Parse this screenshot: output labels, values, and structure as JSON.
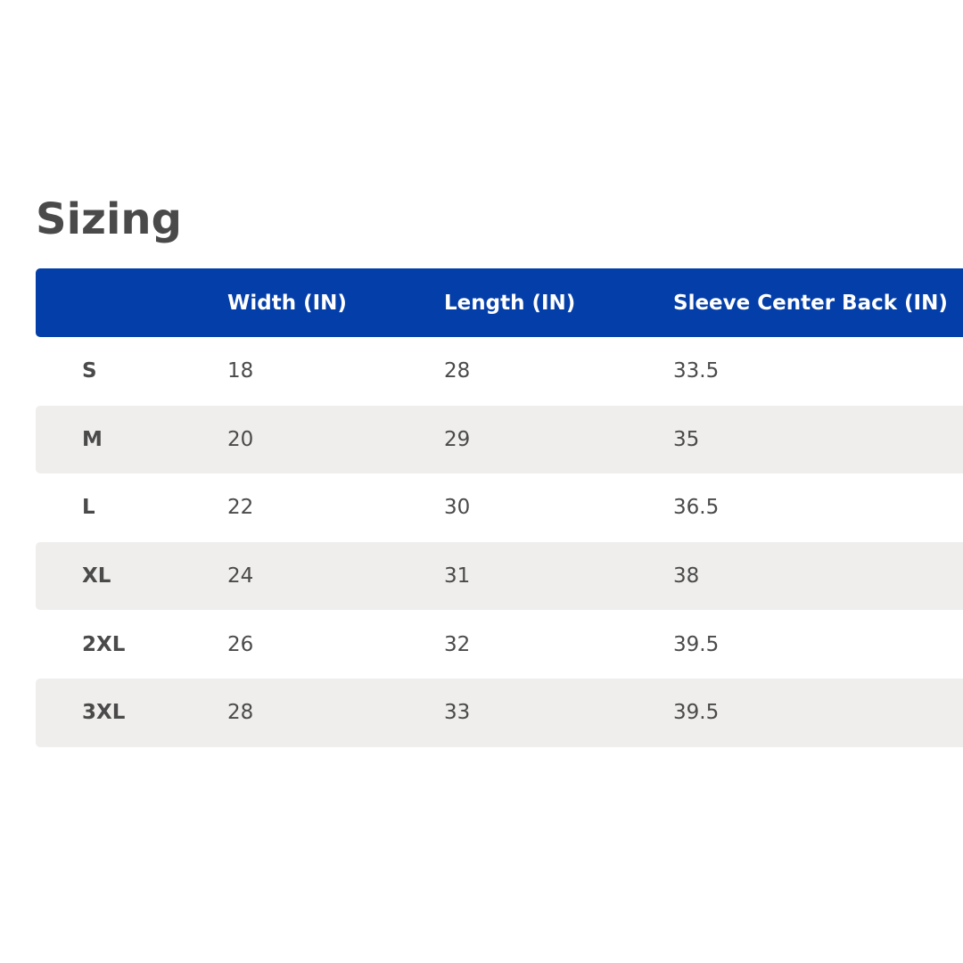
{
  "title": "Sizing",
  "table": {
    "header": [
      "Width (IN)",
      "Length (IN)",
      "Sleeve Center Back (IN)"
    ],
    "rows": [
      [
        "S",
        "18",
        "28",
        "33.5"
      ],
      [
        "M",
        "20",
        "29",
        "35"
      ],
      [
        "L",
        "22",
        "30",
        "36.5"
      ],
      [
        "XL",
        "24",
        "31",
        "38"
      ],
      [
        "2XL",
        "26",
        "32",
        "39.5"
      ],
      [
        "3XL",
        "28",
        "33",
        "39.5"
      ]
    ]
  }
}
